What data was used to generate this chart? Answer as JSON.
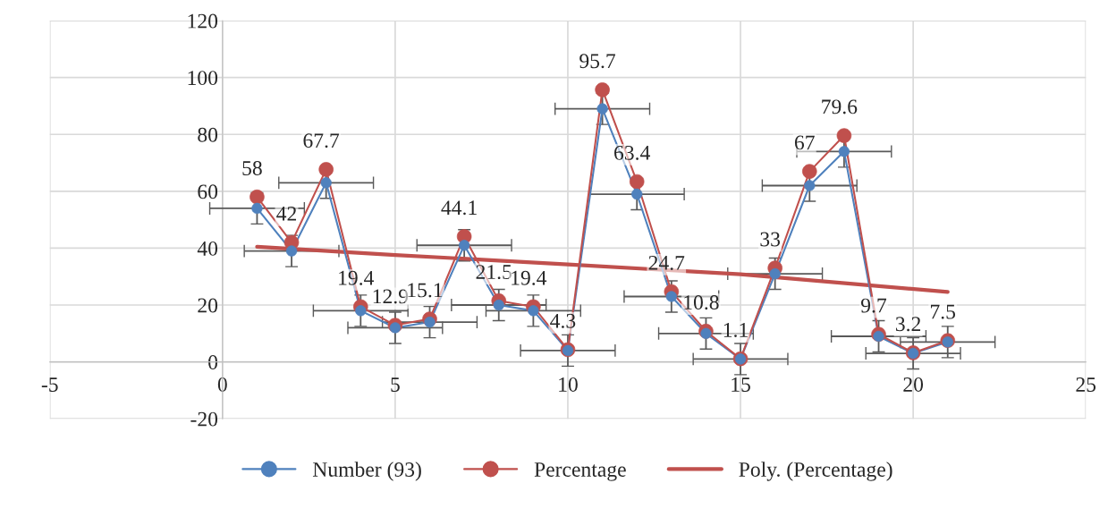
{
  "chart_data": {
    "type": "line",
    "x": [
      1,
      2,
      3,
      4,
      5,
      6,
      7,
      8,
      9,
      10,
      11,
      12,
      13,
      14,
      15,
      16,
      17,
      18,
      19,
      20,
      21
    ],
    "series": [
      {
        "name": "Number (93)",
        "color": "#4f81bd",
        "marker": "circle",
        "values": [
          54,
          39,
          63,
          18,
          12,
          14,
          41,
          20,
          18,
          4,
          89,
          59,
          23,
          10,
          1,
          31,
          62,
          74,
          9,
          3,
          7
        ],
        "errors": [
          5.5,
          5.5,
          5.5,
          5.5,
          5.5,
          5.5,
          5.5,
          5.5,
          5.5,
          5.5,
          5.5,
          5.5,
          5.5,
          5.5,
          5.5,
          5.5,
          5.5,
          5.5,
          5.5,
          5.5,
          5.5
        ],
        "xerrors": [
          1.37,
          1.37,
          1.37,
          1.37,
          1.37,
          1.37,
          1.37,
          1.37,
          1.37,
          1.37,
          1.37,
          1.37,
          1.37,
          1.37,
          1.37,
          1.37,
          1.37,
          1.37,
          1.37,
          1.37,
          1.37
        ]
      },
      {
        "name": "Percentage",
        "color": "#c0504d",
        "marker": "circle",
        "data_labels": true,
        "values": [
          58,
          42,
          67.7,
          19.4,
          12.9,
          15.1,
          44.1,
          21.5,
          19.4,
          4.3,
          95.7,
          63.4,
          24.7,
          10.8,
          1.1,
          33,
          67,
          79.6,
          9.7,
          3.2,
          7.5
        ]
      },
      {
        "name": "Poly. (Percentage)",
        "color": "#c0504d",
        "marker": "none",
        "x": [
          1,
          5,
          10,
          15,
          21
        ],
        "values": [
          40.5,
          37.6,
          34.3,
          30.8,
          24.6
        ]
      }
    ],
    "xlim": [
      -5,
      25
    ],
    "xticks": [
      -5,
      0,
      5,
      10,
      15,
      20,
      25
    ],
    "ylim": [
      -20,
      120
    ],
    "yticks": [
      -20,
      0,
      20,
      40,
      60,
      80,
      100,
      120
    ],
    "grid": true,
    "legend": "bottom"
  }
}
